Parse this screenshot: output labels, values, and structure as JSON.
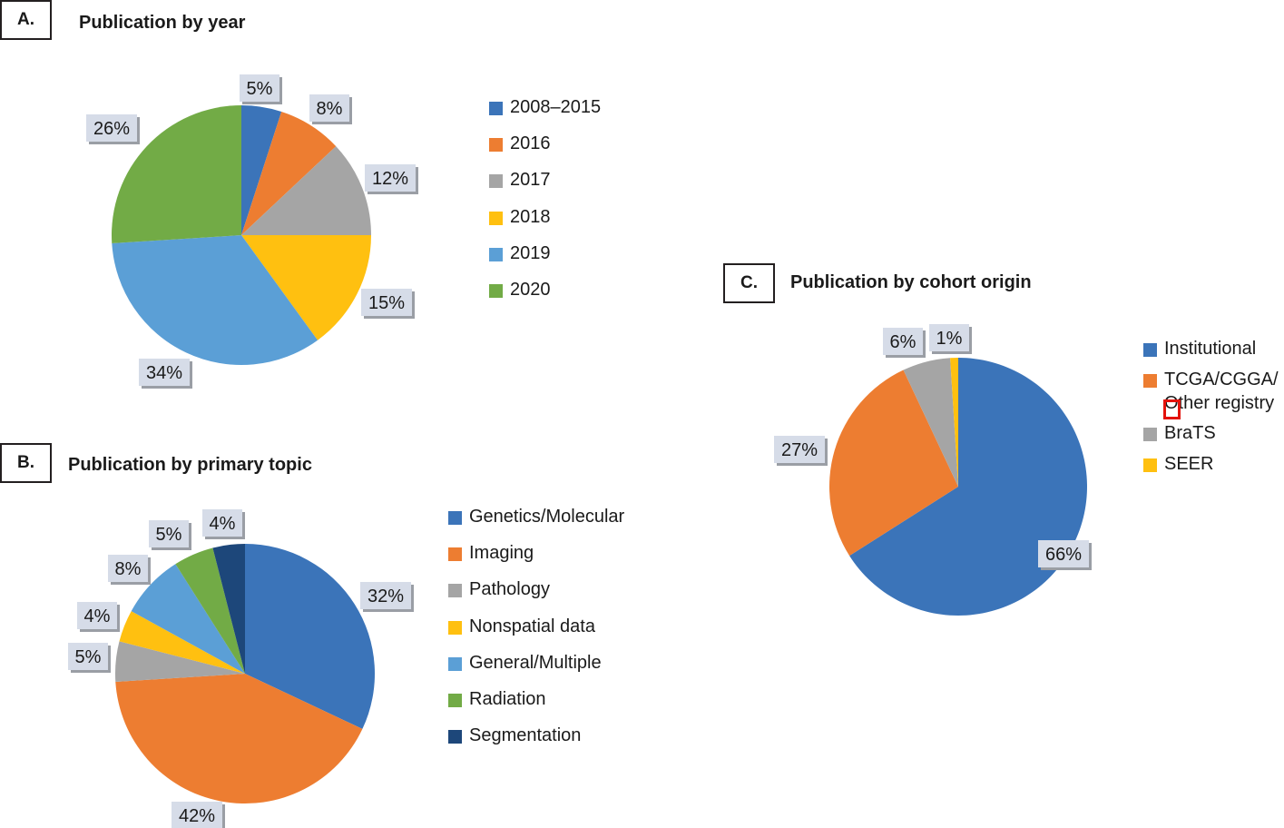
{
  "panels": {
    "a": {
      "letter": "A.",
      "title": "Publication by year"
    },
    "b": {
      "letter": "B.",
      "title": "Publication by primary topic"
    },
    "c": {
      "letter": "C.",
      "title": "Publication by cohort origin"
    }
  },
  "chart_data": [
    {
      "type": "pie",
      "title": "Publication by year",
      "categories": [
        "2008–2015",
        "2016",
        "2017",
        "2018",
        "2019",
        "2020"
      ],
      "values": [
        5,
        8,
        12,
        15,
        34,
        26
      ],
      "labels": [
        "5%",
        "8%",
        "12%",
        "15%",
        "34%",
        "26%"
      ],
      "colors": [
        "#3b74b9",
        "#ed7d31",
        "#a5a5a5",
        "#ffc010",
        "#5b9fd6",
        "#72ab46"
      ],
      "legend": "right",
      "start": "12 o'clock",
      "direction": "clockwise"
    },
    {
      "type": "pie",
      "title": "Publication by primary topic",
      "categories": [
        "Genetics/Molecular",
        "Imaging",
        "Pathology",
        "Nonspatial data",
        "General/Multiple",
        "Radiation",
        "Segmentation"
      ],
      "values": [
        32,
        42,
        5,
        4,
        8,
        5,
        4
      ],
      "labels": [
        "32%",
        "42%",
        "5%",
        "4%",
        "8%",
        "5%",
        "4%"
      ],
      "colors": [
        "#3b74b9",
        "#ed7d31",
        "#a5a5a5",
        "#ffc010",
        "#5b9fd6",
        "#72ab46",
        "#1d477a"
      ],
      "legend": "right",
      "start": "12 o'clock",
      "direction": "clockwise"
    },
    {
      "type": "pie",
      "title": "Publication by cohort origin",
      "categories": [
        "Institutional",
        "TCGA/CGGA/Other registry",
        "BraTS",
        "SEER"
      ],
      "legend_lines": [
        [
          "Institutional"
        ],
        [
          "TCGA/CGGA/",
          "Other registry"
        ],
        [
          "BraTS"
        ],
        [
          "SEER"
        ]
      ],
      "values": [
        66,
        27,
        6,
        1
      ],
      "labels": [
        "66%",
        "27%",
        "6%",
        "1%"
      ],
      "colors": [
        "#3b74b9",
        "#ed7d31",
        "#a5a5a5",
        "#ffc010"
      ],
      "legend": "right",
      "start": "12 o'clock",
      "direction": "clockwise"
    }
  ]
}
